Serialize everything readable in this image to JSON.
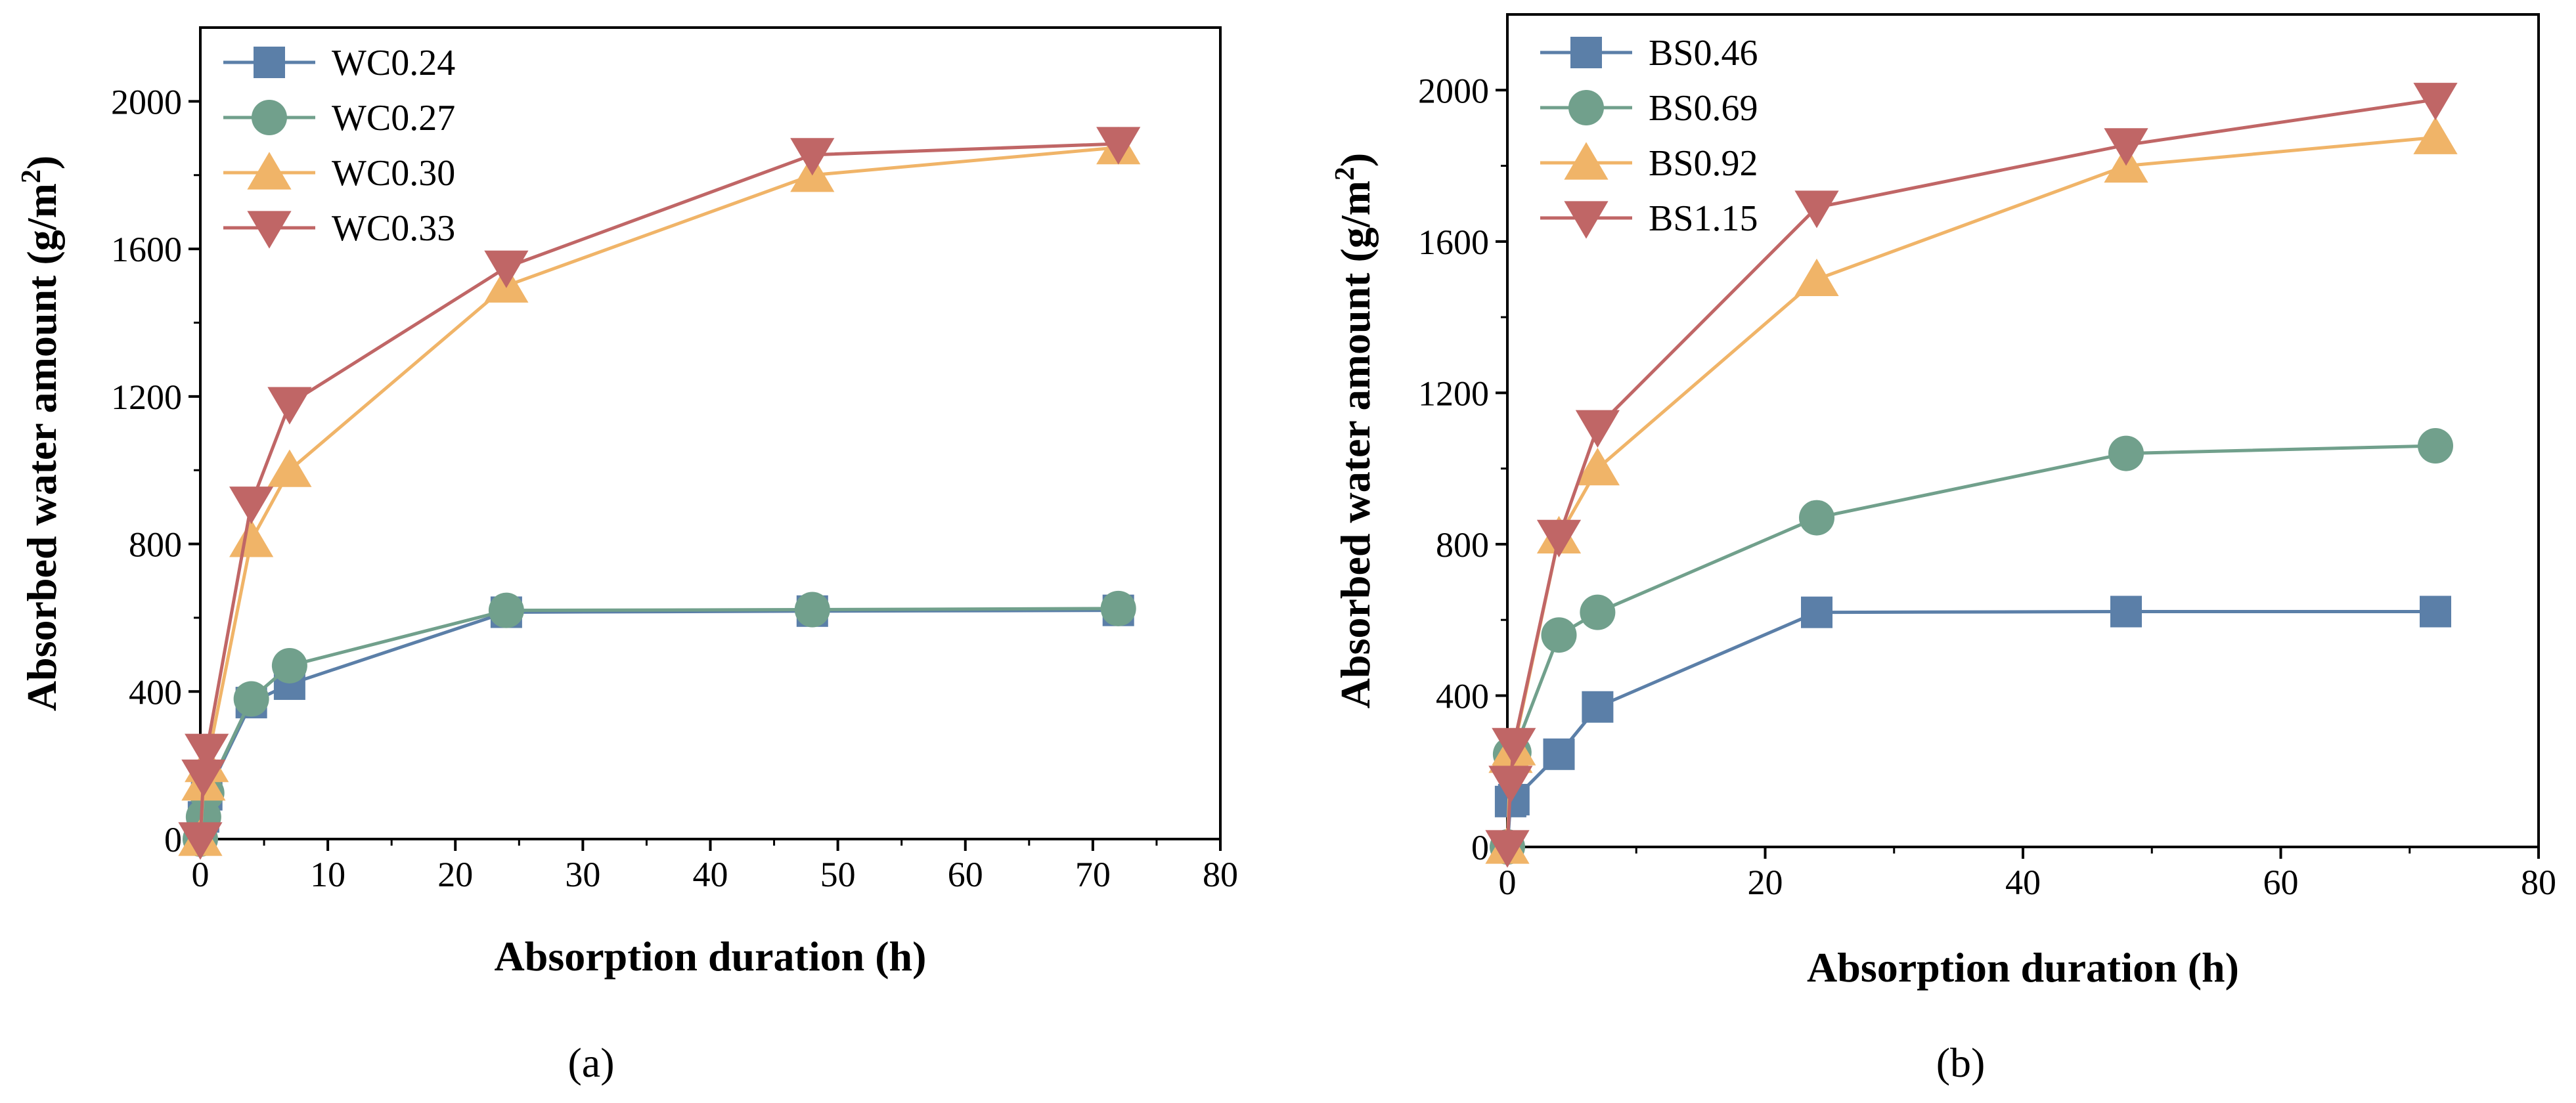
{
  "colors": {
    "blue": "#5B7FA8",
    "green": "#71A08C",
    "orange": "#F0B468",
    "red": "#C06666"
  },
  "chart_data": [
    {
      "type": "line",
      "panel_label": "(a)",
      "xlabel": "Absorption duration (h)",
      "ylabel_main": "Absorbed water amount (g/m",
      "ylabel_sup": "2",
      "ylabel_tail": ")",
      "xlim": [
        0,
        80
      ],
      "ylim": [
        0,
        2200
      ],
      "xticks": [
        0,
        10,
        20,
        30,
        40,
        50,
        60,
        70,
        80
      ],
      "yticks": [
        0,
        400,
        800,
        1200,
        1600,
        2000
      ],
      "legend_position": "top-left",
      "x": [
        0,
        0.25,
        0.5,
        4,
        7,
        24,
        48,
        72
      ],
      "series": [
        {
          "name": "WC0.24",
          "marker": "square",
          "color": "#5B7FA8",
          "values": [
            0,
            60,
            120,
            370,
            420,
            615,
            618,
            620
          ]
        },
        {
          "name": "WC0.27",
          "marker": "circle",
          "color": "#71A08C",
          "values": [
            0,
            60,
            125,
            380,
            470,
            620,
            622,
            625
          ]
        },
        {
          "name": "WC0.30",
          "marker": "triangle-up",
          "color": "#F0B468",
          "values": [
            0,
            150,
            200,
            810,
            1000,
            1500,
            1800,
            1875
          ]
        },
        {
          "name": "WC0.33",
          "marker": "triangle-down",
          "color": "#C06666",
          "values": [
            0,
            170,
            240,
            910,
            1180,
            1550,
            1855,
            1885
          ]
        }
      ]
    },
    {
      "type": "line",
      "panel_label": "(b)",
      "xlabel": "Absorption duration (h)",
      "ylabel_main": "Absorbed water amount (g/m",
      "ylabel_sup": "2",
      "ylabel_tail": ")",
      "xlim": [
        0,
        80
      ],
      "ylim": [
        0,
        2200
      ],
      "xticks": [
        0,
        20,
        40,
        60,
        80
      ],
      "yticks": [
        0,
        400,
        800,
        1200,
        1600,
        2000
      ],
      "legend_position": "top-left",
      "x": [
        0,
        0.25,
        0.5,
        4,
        7,
        24,
        48,
        72
      ],
      "series": [
        {
          "name": "BS0.46",
          "marker": "square",
          "color": "#5B7FA8",
          "values": [
            0,
            120,
            125,
            245,
            370,
            620,
            622,
            622
          ]
        },
        {
          "name": "BS0.69",
          "marker": "circle",
          "color": "#71A08C",
          "values": [
            0,
            245,
            250,
            560,
            620,
            870,
            1040,
            1060
          ]
        },
        {
          "name": "BS0.92",
          "marker": "triangle-up",
          "color": "#F0B468",
          "values": [
            0,
            240,
            260,
            820,
            1000,
            1500,
            1800,
            1875
          ]
        },
        {
          "name": "BS1.15",
          "marker": "triangle-down",
          "color": "#C06666",
          "values": [
            0,
            170,
            270,
            820,
            1110,
            1690,
            1855,
            1975
          ]
        }
      ]
    }
  ]
}
